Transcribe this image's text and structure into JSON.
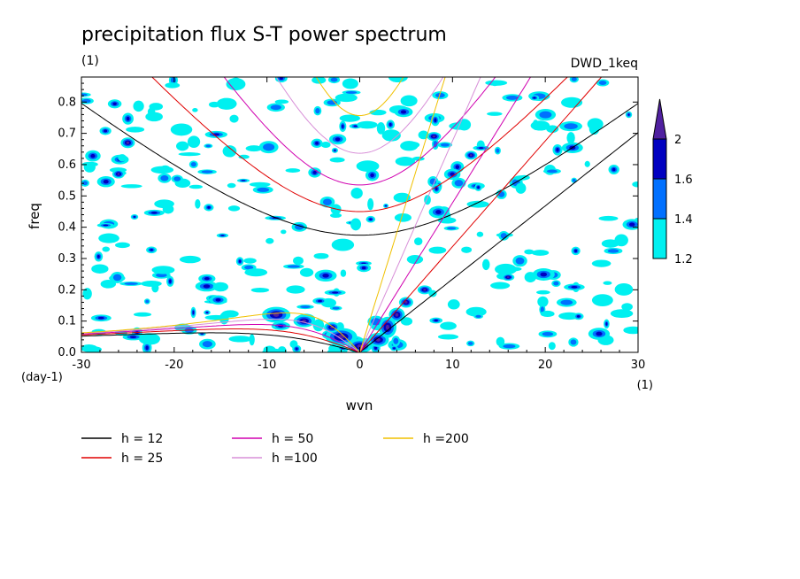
{
  "chart_data": {
    "type": "line",
    "title": "precipitation flux S-T power spectrum",
    "subtitle_left": "(1)",
    "subtitle_right": "DWD_1keq",
    "xlabel": "wvn",
    "ylabel": "freq",
    "x_unit": "(1)",
    "y_unit": "(day-1)",
    "xlim": [
      -30,
      30
    ],
    "ylim": [
      0,
      0.88
    ],
    "x_ticks": [
      -30,
      -20,
      -10,
      0,
      10,
      20,
      30
    ],
    "x_tick_labels": [
      "-30",
      "-20",
      "-10",
      "0",
      "10",
      "20",
      "30"
    ],
    "y_ticks": [
      0,
      0.1,
      0.2,
      0.3,
      0.4,
      0.5,
      0.6,
      0.7,
      0.8
    ],
    "y_tick_labels": [
      "0.0",
      "0.1",
      "0.2",
      "0.3",
      "0.4",
      "0.5",
      "0.6",
      "0.7",
      "0.8"
    ],
    "series": [
      {
        "name": "h = 12",
        "color": "#000000"
      },
      {
        "name": "h = 25",
        "color": "#e00000"
      },
      {
        "name": "h = 50",
        "color": "#d000b0"
      },
      {
        "name": "h =100",
        "color": "#d890d8"
      },
      {
        "name": "h =200",
        "color": "#f0c000"
      }
    ],
    "h_values": [
      12,
      25,
      50,
      100,
      200
    ],
    "colorbar": {
      "levels": [
        "1.2",
        "1.4",
        "1.6",
        "2"
      ],
      "colors": [
        "#00f0f0",
        "#0070ff",
        "#0000c0",
        "#5020a0"
      ]
    }
  }
}
